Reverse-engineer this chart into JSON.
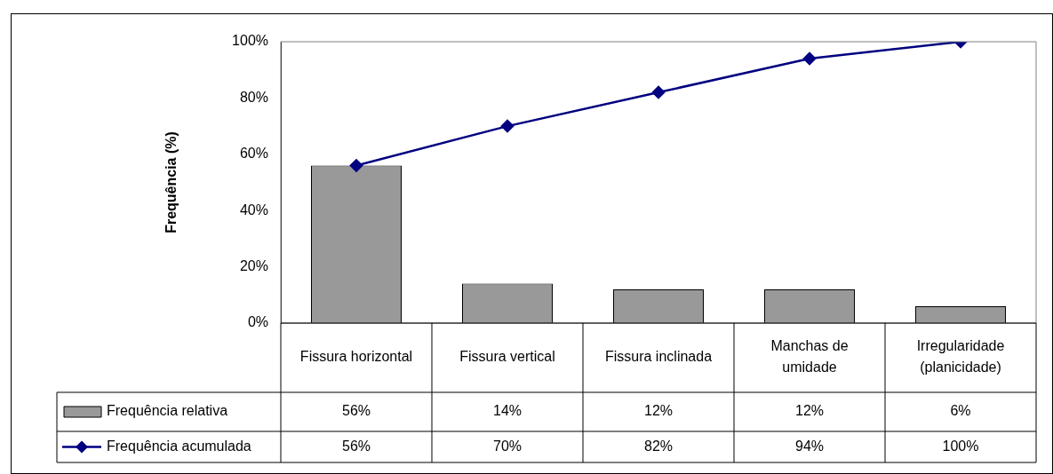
{
  "chart_data": {
    "type": "bar",
    "ylabel": "Frequência (%)",
    "categories": [
      "Fissura horizontal",
      "Fissura vertical",
      "Fissura inclinada",
      "Manchas de umidade",
      "Irregularidade (planicidade)"
    ],
    "series": [
      {
        "name": "Frequência relativa",
        "color": "#999999",
        "values": [
          56,
          14,
          12,
          12,
          6
        ],
        "value_labels": [
          "56%",
          "14%",
          "12%",
          "12%",
          "6%"
        ]
      },
      {
        "name": "Frequência acumulada",
        "type": "line",
        "color": "#000080",
        "values": [
          56,
          70,
          82,
          94,
          100
        ],
        "value_labels": [
          "56%",
          "70%",
          "82%",
          "94%",
          "100%"
        ]
      }
    ],
    "ylim": [
      0,
      100
    ],
    "yticks": [
      {
        "value": 0,
        "label": "0%"
      },
      {
        "value": 20,
        "label": "20%"
      },
      {
        "value": 40,
        "label": "40%"
      },
      {
        "value": 60,
        "label": "60%"
      },
      {
        "value": 80,
        "label": "80%"
      },
      {
        "value": 100,
        "label": "100%"
      }
    ],
    "grid": false,
    "legend": "bottom",
    "marker": "diamond",
    "line_style": "solid"
  }
}
